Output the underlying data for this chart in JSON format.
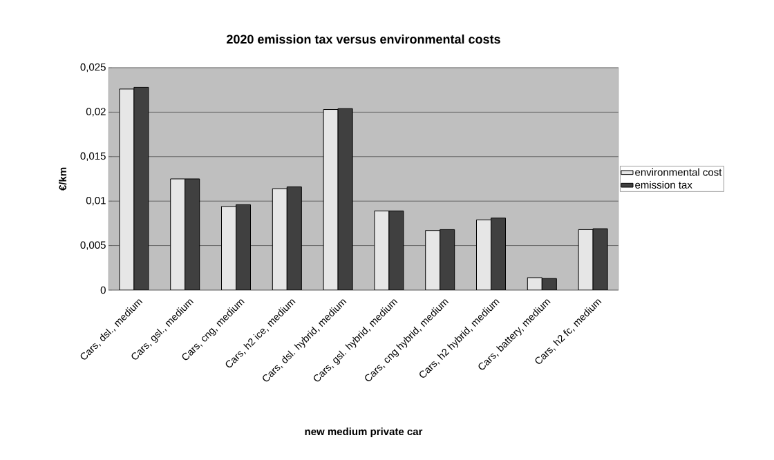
{
  "chart_data": {
    "type": "bar",
    "title": "2020 emission tax versus environmental costs",
    "xlabel": "new medium private car",
    "ylabel": "€/km",
    "categories": [
      "Cars, dsl., medium",
      "Cars, gsl., medium",
      "Cars, cng, medium",
      "Cars, h2 ice, medium",
      "Cars, dsl. hybrid, medium",
      "Cars, gsl. hybrid, medium",
      "Cars, cng hybrid, medium",
      "Cars, h2 hybrid, medium",
      "Cars, battery, medium",
      "Cars, h2 fc, medium"
    ],
    "series": [
      {
        "name": "environmental cost",
        "color": "#e6e6e6",
        "values": [
          0.0226,
          0.0125,
          0.0094,
          0.0114,
          0.0203,
          0.0089,
          0.0067,
          0.0079,
          0.0014,
          0.0068
        ]
      },
      {
        "name": "emission tax",
        "color": "#404040",
        "values": [
          0.0228,
          0.0125,
          0.0096,
          0.0116,
          0.0204,
          0.0089,
          0.0068,
          0.0081,
          0.0013,
          0.0069
        ]
      }
    ],
    "ylim": [
      0,
      0.025
    ],
    "yticks": [
      {
        "value": 0,
        "label": "0"
      },
      {
        "value": 0.005,
        "label": "0,005"
      },
      {
        "value": 0.01,
        "label": "0,01"
      },
      {
        "value": 0.015,
        "label": "0,015"
      },
      {
        "value": 0.02,
        "label": "0,02"
      },
      {
        "value": 0.025,
        "label": "0,025"
      }
    ],
    "grid": "y",
    "legend": "right"
  }
}
